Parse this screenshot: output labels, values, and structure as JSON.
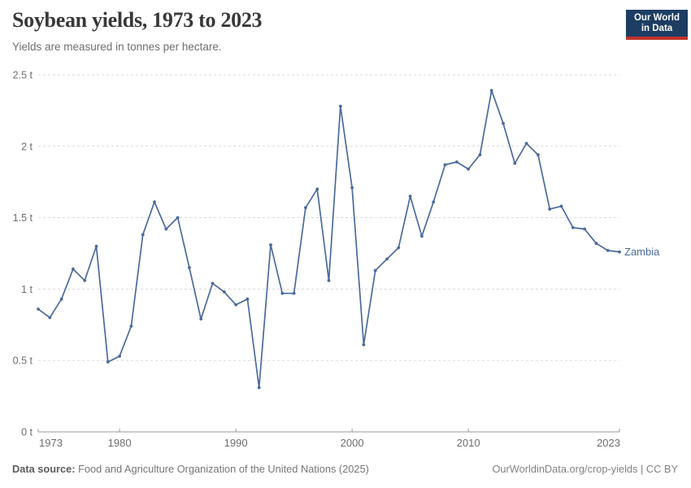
{
  "header": {
    "title": "Soybean yields, 1973 to 2023",
    "subtitle": "Yields are measured in tonnes per hectare."
  },
  "logo": {
    "line1": "Our World",
    "line2": "in Data",
    "bg_color": "#1d3d63",
    "accent_color": "#c0352c"
  },
  "chart_data": {
    "type": "line",
    "title": "Soybean yields, 1973 to 2023",
    "ylabel": "tonnes per hectare",
    "unit_suffix": " t",
    "xlim": [
      1973,
      2023
    ],
    "ylim": [
      0,
      2.5
    ],
    "yticks": [
      0,
      0.5,
      1,
      1.5,
      2,
      2.5
    ],
    "xticks": [
      1973,
      1980,
      1990,
      2000,
      2010,
      2023
    ],
    "grid": "horizontal-dashed",
    "legend_position": "end-of-line",
    "series": [
      {
        "name": "Zambia",
        "color": "#4c6a9c",
        "x": [
          1973,
          1974,
          1975,
          1976,
          1977,
          1978,
          1979,
          1980,
          1981,
          1982,
          1983,
          1984,
          1985,
          1986,
          1987,
          1988,
          1989,
          1990,
          1991,
          1992,
          1993,
          1994,
          1995,
          1996,
          1997,
          1998,
          1999,
          2000,
          2001,
          2002,
          2003,
          2004,
          2005,
          2006,
          2007,
          2008,
          2009,
          2010,
          2011,
          2012,
          2013,
          2014,
          2015,
          2016,
          2017,
          2018,
          2019,
          2020,
          2021,
          2022,
          2023
        ],
        "values": [
          0.86,
          0.8,
          0.93,
          1.14,
          1.06,
          1.3,
          0.49,
          0.53,
          0.74,
          1.38,
          1.61,
          1.42,
          1.5,
          1.15,
          0.79,
          1.04,
          0.98,
          0.89,
          0.93,
          0.31,
          1.31,
          0.97,
          0.97,
          1.57,
          1.7,
          1.06,
          2.28,
          1.71,
          0.61,
          1.13,
          1.21,
          1.29,
          1.65,
          1.37,
          1.61,
          1.87,
          1.89,
          1.84,
          1.94,
          2.39,
          2.16,
          1.88,
          2.02,
          1.94,
          1.56,
          1.58,
          1.43,
          1.42,
          1.32,
          1.27,
          1.26
        ]
      }
    ],
    "style_colors": {
      "gridline": "#dadada",
      "axis": "#999999",
      "tick_label": "#6d6d6d"
    }
  },
  "footer": {
    "source_label": "Data source:",
    "source_text": " Food and Agriculture Organization of the United Nations (2025)",
    "credit": "OurWorldinData.org/crop-yields | CC BY"
  }
}
